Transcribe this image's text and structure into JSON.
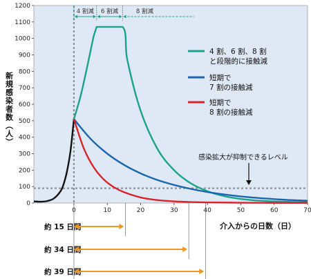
{
  "chart_data": {
    "type": "line",
    "title": "",
    "xlabel": "介入からの日数（日）",
    "ylabel": "新規感染者数（人）",
    "xlim": [
      -12,
      70
    ],
    "ylim": [
      0,
      1200
    ],
    "x_ticks": [
      0,
      10,
      20,
      30,
      40,
      50,
      60,
      70
    ],
    "y_ticks": [
      0,
      100,
      200,
      300,
      400,
      500,
      600,
      700,
      800,
      900,
      1000,
      1100,
      1200
    ],
    "grid": false,
    "legend_position": "right",
    "series": [
      {
        "name": "",
        "color": "#111111",
        "x": [
          -12,
          -10,
          -8,
          -6,
          -4,
          -3,
          -2,
          -1,
          0
        ],
        "y": [
          10,
          8,
          12,
          28,
          72,
          120,
          200,
          320,
          510
        ]
      },
      {
        "name": "4 割、6 割、8 割と段階的に接触減",
        "color": "#1aa38a",
        "x": [
          0,
          2,
          4,
          6,
          6.8,
          14.6,
          16,
          20,
          25,
          30,
          35,
          40,
          45,
          50,
          55,
          60,
          65,
          70
        ],
        "y": [
          510,
          650,
          830,
          1020,
          1070,
          1070,
          870,
          560,
          330,
          200,
          120,
          72,
          42,
          25,
          15,
          10,
          7,
          5
        ]
      },
      {
        "name": "短期で7 割の接触減",
        "color": "#1a64b0",
        "x": [
          0,
          5,
          10,
          15,
          20,
          25,
          30,
          35,
          40,
          45,
          50,
          55,
          60,
          65,
          70
        ],
        "y": [
          510,
          390,
          300,
          232,
          180,
          140,
          110,
          86,
          67,
          52,
          40,
          31,
          24,
          18,
          14
        ]
      },
      {
        "name": "短期で8 割の接触減",
        "color": "#d8232a",
        "x": [
          0,
          3,
          6,
          9,
          12,
          15,
          20,
          25,
          30,
          35,
          40,
          50,
          60,
          70
        ],
        "y": [
          510,
          330,
          215,
          142,
          96,
          66,
          34,
          18,
          10,
          6,
          4,
          2,
          1,
          1
        ]
      }
    ],
    "phases": [
      {
        "label": "4 割減",
        "x_start": 0,
        "x_end": 6.8
      },
      {
        "label": "6 割減",
        "x_start": 6.8,
        "x_end": 14.6
      },
      {
        "label": "8 割減",
        "x_start": 14.6,
        "x_end": 36
      }
    ],
    "threshold": {
      "y": 90,
      "label": "感染拡大が抑制できるレベル"
    },
    "durations": [
      {
        "label": "約 15 日間",
        "days": 15
      },
      {
        "label": "約 34 日間",
        "days": 34
      },
      {
        "label": "約 39 日間",
        "days": 39
      }
    ]
  }
}
